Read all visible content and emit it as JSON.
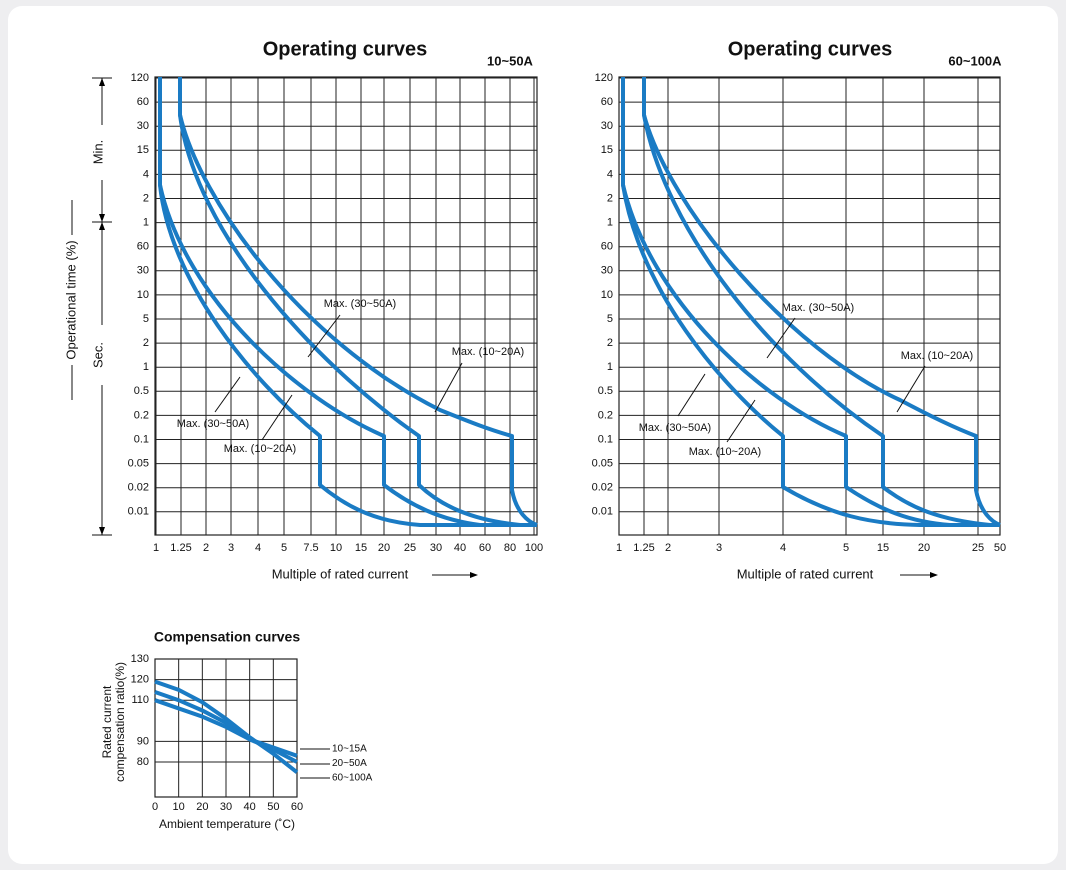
{
  "operating": [
    {
      "title": "Operating curves",
      "unit": "10~50A",
      "y_labels": [
        "120",
        "60",
        "30",
        "15",
        "4",
        "2",
        "1",
        "60",
        "30",
        "10",
        "5",
        "2",
        "1",
        "0.5",
        "0.2",
        "0.1",
        "0.05",
        "0.02",
        "0.01"
      ],
      "x_labels": [
        "1",
        "1.25",
        "2",
        "3",
        "4",
        "5",
        "7.5",
        "10",
        "15",
        "20",
        "25",
        "30",
        "40",
        "60",
        "80",
        "100"
      ],
      "x_title": "Multiple of rated current",
      "annotations": [
        "Max. (30~50A)",
        "Max. (10~20A)",
        "Max. (30~50A)",
        "Max. (10~20A)"
      ]
    },
    {
      "title": "Operating curves",
      "unit": "60~100A",
      "y_labels": [
        "120",
        "60",
        "30",
        "15",
        "4",
        "2",
        "1",
        "60",
        "30",
        "10",
        "5",
        "2",
        "1",
        "0.5",
        "0.2",
        "0.1",
        "0.05",
        "0.02",
        "0.01"
      ],
      "x_labels": [
        "1",
        "1.25",
        "2",
        "3",
        "4",
        "5",
        "15",
        "20",
        "25",
        "50"
      ],
      "x_title": "Multiple of rated current",
      "annotations": [
        "Max. (30~50A)",
        "Max. (10~20A)",
        "Max. (30~50A)",
        "Max. (10~20A)"
      ]
    }
  ],
  "y_axis": {
    "title": "Operational time (%)",
    "upper": "Min.",
    "lower": "Sec."
  },
  "chart_data": {
    "type": "line",
    "title": "Compensation curves",
    "x_label": "Ambient temperature (˚C)",
    "y_label": [
      "Rated current",
      "compensation ratio(%)"
    ],
    "x": [
      0,
      10,
      20,
      30,
      40,
      50,
      60
    ],
    "series": [
      {
        "name": "10~15A",
        "color": "#1a7bc4",
        "values": [
          110,
          106,
          102,
          97,
          91,
          87,
          83
        ]
      },
      {
        "name": "20~50A",
        "color": "#1a7bc4",
        "values": [
          114,
          110,
          105,
          99,
          91,
          86,
          80
        ]
      },
      {
        "name": "60~100A",
        "color": "#1a7bc4",
        "values": [
          119,
          115,
          109,
          101,
          92,
          84,
          75
        ]
      }
    ],
    "xlim": [
      0,
      60
    ],
    "xticks": [
      0,
      10,
      20,
      30,
      40,
      50,
      60
    ],
    "ylim": [
      63,
      130
    ],
    "yticks": [
      130,
      120,
      110,
      90,
      80
    ],
    "grid": true
  }
}
